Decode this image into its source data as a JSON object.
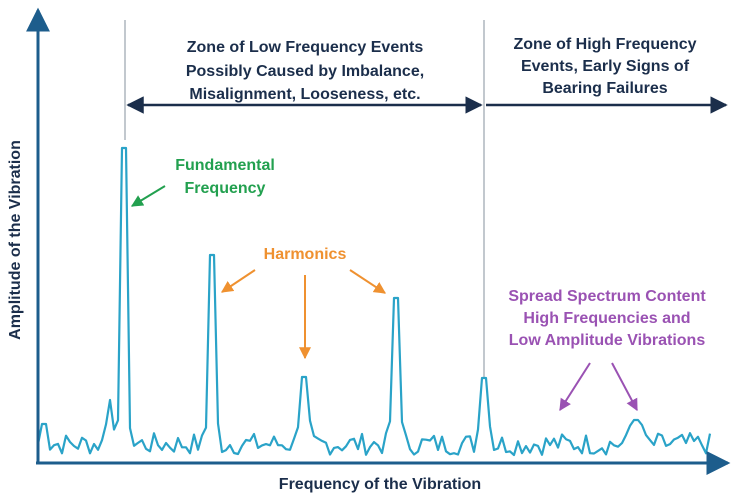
{
  "y_axis_label": "Amplitude of the Vibration",
  "x_axis_label": "Frequency of the Vibration",
  "zones": [
    {
      "lines": [
        "Zone of Low Frequency Events",
        "Possibly Caused by Imbalance,",
        "Misalignment, Looseness, etc."
      ]
    },
    {
      "lines": [
        "Zone of High Frequency",
        "Events, Early Signs of",
        "Bearing Failures"
      ]
    }
  ],
  "annotations": {
    "fundamental": [
      "Fundamental",
      "Frequency"
    ],
    "harmonics": "Harmonics",
    "spread": [
      "Spread Spectrum Content",
      "High Frequencies and",
      "Low Amplitude Vibrations"
    ]
  }
}
